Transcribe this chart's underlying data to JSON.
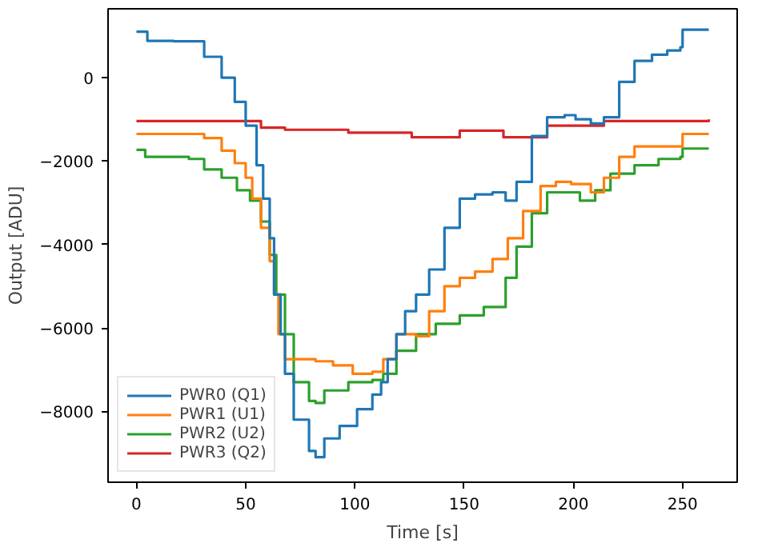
{
  "chart_data": {
    "type": "step",
    "xlabel": "Time [s]",
    "ylabel": "Output [ADU]",
    "xlim": [
      -13,
      275
    ],
    "ylim": [
      -9700,
      1650
    ],
    "xticks": [
      0,
      50,
      100,
      150,
      200,
      250
    ],
    "yticks": [
      -8000,
      -6000,
      -4000,
      -2000,
      0
    ],
    "grid": false,
    "legend": "bottom left",
    "series": [
      {
        "name": "PWR0 (Q1)",
        "color": "#1f77b4",
        "x": [
          0,
          5,
          17,
          31,
          39,
          45,
          50,
          55,
          58,
          61,
          63,
          66,
          68,
          72,
          79,
          82,
          86,
          93,
          101,
          108,
          112,
          115,
          119,
          123,
          128,
          134,
          141,
          148,
          155,
          163,
          169,
          174,
          181,
          188,
          196,
          201,
          208,
          214,
          221,
          228,
          236,
          243,
          249,
          250,
          262
        ],
        "values": [
          1100,
          880,
          870,
          500,
          0,
          -580,
          -1150,
          -2100,
          -2900,
          -3850,
          -5200,
          -6150,
          -7100,
          -8200,
          -8950,
          -9100,
          -8650,
          -8350,
          -7950,
          -7600,
          -7300,
          -6750,
          -6150,
          -5600,
          -5200,
          -4600,
          -3600,
          -2900,
          -2800,
          -2750,
          -2950,
          -2500,
          -1400,
          -950,
          -900,
          -1000,
          -1100,
          -950,
          -100,
          400,
          550,
          650,
          730,
          1150,
          1150
        ]
      },
      {
        "name": "PWR1 (U1)",
        "color": "#ff7f0e",
        "x": [
          0,
          24,
          31,
          39,
          45,
          50,
          53,
          57,
          61,
          63,
          65,
          68,
          72,
          82,
          90,
          99,
          108,
          113,
          119,
          128,
          134,
          141,
          148,
          155,
          163,
          170,
          177,
          185,
          192,
          199,
          208,
          214,
          221,
          228,
          236,
          249,
          250,
          262
        ],
        "values": [
          -1350,
          -1350,
          -1450,
          -1750,
          -2050,
          -2400,
          -2900,
          -3600,
          -4400,
          -5200,
          -6150,
          -6750,
          -6750,
          -6800,
          -6900,
          -7100,
          -7050,
          -6750,
          -6150,
          -6200,
          -5600,
          -5000,
          -4800,
          -4650,
          -4350,
          -3850,
          -3200,
          -2600,
          -2500,
          -2550,
          -2750,
          -2400,
          -1900,
          -1650,
          -1650,
          -1650,
          -1350,
          -1350
        ]
      },
      {
        "name": "PWR2 (U2)",
        "color": "#2ca02c",
        "x": [
          0,
          4,
          24,
          31,
          39,
          46,
          52,
          57,
          61,
          64,
          68,
          72,
          79,
          82,
          86,
          97,
          108,
          113,
          119,
          128,
          137,
          148,
          159,
          169,
          174,
          181,
          188,
          196,
          203,
          210,
          217,
          228,
          239,
          249,
          250,
          262
        ],
        "values": [
          -1730,
          -1900,
          -1950,
          -2200,
          -2400,
          -2700,
          -2950,
          -3450,
          -4250,
          -5200,
          -6150,
          -7300,
          -7750,
          -7800,
          -7500,
          -7300,
          -7250,
          -7100,
          -6550,
          -6150,
          -5900,
          -5700,
          -5500,
          -4800,
          -4050,
          -3250,
          -2750,
          -2750,
          -2950,
          -2700,
          -2300,
          -2100,
          -1950,
          -1900,
          -1700,
          -1700
        ]
      },
      {
        "name": "PWR3 (Q2)",
        "color": "#d62728",
        "x": [
          0,
          46,
          57,
          68,
          97,
          126,
          148,
          168,
          188,
          214,
          262
        ],
        "values": [
          -1040,
          -1040,
          -1200,
          -1250,
          -1320,
          -1430,
          -1270,
          -1430,
          -1150,
          -1040,
          -1000
        ]
      }
    ]
  }
}
